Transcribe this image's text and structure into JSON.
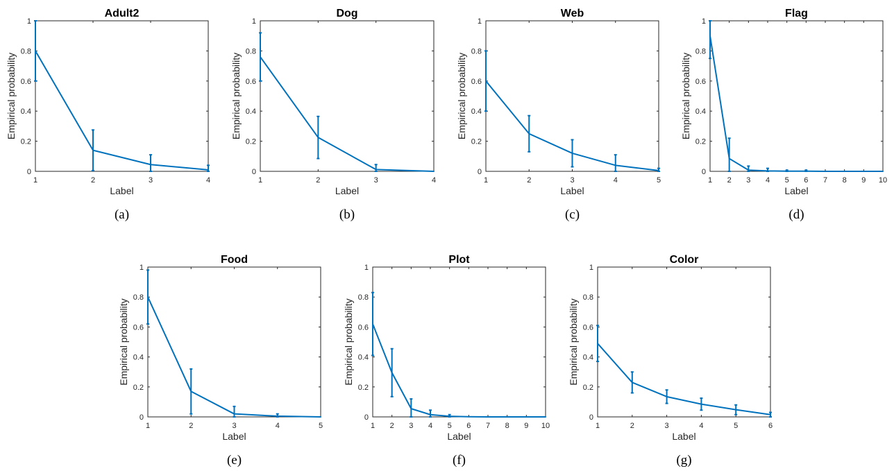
{
  "style": {
    "line_color": "#0072BD",
    "axis_color": "#262626"
  },
  "chart_data": [
    {
      "type": "line",
      "title": "Adult2",
      "caption": "(a)",
      "xlabel": "Label",
      "ylabel": "Empirical probability",
      "xlim": [
        1,
        4
      ],
      "ylim": [
        0,
        1
      ],
      "x": [
        1,
        2,
        3,
        4
      ],
      "xticks": [
        "1",
        "2",
        "3",
        "4"
      ],
      "yticks": [
        "0",
        "0.2",
        "0.4",
        "0.6",
        "0.8",
        "1"
      ],
      "y": [
        0.8,
        0.14,
        0.045,
        0.01
      ],
      "error_low": [
        0.6,
        0.005,
        0.0,
        0.0
      ],
      "error_high": [
        1.0,
        0.275,
        0.11,
        0.04
      ]
    },
    {
      "type": "line",
      "title": "Dog",
      "caption": "(b)",
      "xlabel": "Label",
      "ylabel": "Empirical probability",
      "xlim": [
        1,
        4
      ],
      "ylim": [
        0,
        1
      ],
      "x": [
        1,
        2,
        3,
        4
      ],
      "xticks": [
        "1",
        "2",
        "3",
        "4"
      ],
      "yticks": [
        "0",
        "0.2",
        "0.4",
        "0.6",
        "0.8",
        "1"
      ],
      "y": [
        0.76,
        0.225,
        0.012,
        0.0
      ],
      "error_low": [
        0.6,
        0.085,
        0.0,
        0.0
      ],
      "error_high": [
        0.92,
        0.365,
        0.045,
        0.0
      ]
    },
    {
      "type": "line",
      "title": "Web",
      "caption": "(c)",
      "xlabel": "Label",
      "ylabel": "Empirical probability",
      "xlim": [
        1,
        5
      ],
      "ylim": [
        0,
        1
      ],
      "x": [
        1,
        2,
        3,
        4,
        5
      ],
      "xticks": [
        "1",
        "2",
        "3",
        "4",
        "5"
      ],
      "yticks": [
        "0",
        "0.2",
        "0.4",
        "0.6",
        "0.8",
        "1"
      ],
      "y": [
        0.6,
        0.25,
        0.12,
        0.04,
        0.005
      ],
      "error_low": [
        0.4,
        0.13,
        0.03,
        0.0,
        0.0
      ],
      "error_high": [
        0.8,
        0.37,
        0.21,
        0.11,
        0.02
      ]
    },
    {
      "type": "line",
      "title": "Flag",
      "caption": "(d)",
      "xlabel": "Label",
      "ylabel": "Empirical probability",
      "xlim": [
        1,
        10
      ],
      "ylim": [
        0,
        1
      ],
      "x": [
        1,
        2,
        3,
        4,
        5,
        6,
        7,
        8,
        9,
        10
      ],
      "xticks": [
        "1",
        "2",
        "3",
        "4",
        "5",
        "6",
        "7",
        "8",
        "9",
        "10"
      ],
      "yticks": [
        "0",
        "0.2",
        "0.4",
        "0.6",
        "0.8",
        "1"
      ],
      "y": [
        0.9,
        0.085,
        0.008,
        0.003,
        0.001,
        0.001,
        0.0,
        0.0,
        0.0,
        0.0
      ],
      "error_low": [
        0.75,
        0.0,
        0.0,
        0.0,
        0.0,
        0.0,
        0.0,
        0.0,
        0.0,
        0.0
      ],
      "error_high": [
        1.0,
        0.22,
        0.035,
        0.02,
        0.008,
        0.008,
        0.0,
        0.0,
        0.0,
        0.0
      ]
    },
    {
      "type": "line",
      "title": "Food",
      "caption": "(e)",
      "xlabel": "Label",
      "ylabel": "Empirical probability",
      "xlim": [
        1,
        5
      ],
      "ylim": [
        0,
        1
      ],
      "x": [
        1,
        2,
        3,
        4,
        5
      ],
      "xticks": [
        "1",
        "2",
        "3",
        "4",
        "5"
      ],
      "yticks": [
        "0",
        "0.2",
        "0.4",
        "0.6",
        "0.8",
        "1"
      ],
      "y": [
        0.8,
        0.17,
        0.02,
        0.005,
        0.0
      ],
      "error_low": [
        0.62,
        0.02,
        0.0,
        0.0,
        0.0
      ],
      "error_high": [
        0.98,
        0.32,
        0.07,
        0.02,
        0.0
      ]
    },
    {
      "type": "line",
      "title": "Plot",
      "caption": "(f)",
      "xlabel": "Label",
      "ylabel": "Empirical probability",
      "xlim": [
        1,
        10
      ],
      "ylim": [
        0,
        1
      ],
      "x": [
        1,
        2,
        3,
        4,
        5,
        6,
        7,
        8,
        9,
        10
      ],
      "xticks": [
        "1",
        "2",
        "3",
        "4",
        "5",
        "6",
        "7",
        "8",
        "9",
        "10"
      ],
      "yticks": [
        "0",
        "0.2",
        "0.4",
        "0.6",
        "0.8",
        "1"
      ],
      "y": [
        0.62,
        0.295,
        0.055,
        0.015,
        0.004,
        0.001,
        0.0,
        0.0,
        0.0,
        0.0
      ],
      "error_low": [
        0.41,
        0.135,
        0.0,
        0.0,
        0.0,
        0.0,
        0.0,
        0.0,
        0.0,
        0.0
      ],
      "error_high": [
        0.83,
        0.455,
        0.12,
        0.045,
        0.015,
        0.0,
        0.0,
        0.0,
        0.0,
        0.0
      ]
    },
    {
      "type": "line",
      "title": "Color",
      "caption": "(g)",
      "xlabel": "Label",
      "ylabel": "Empirical probability",
      "xlim": [
        1,
        6
      ],
      "ylim": [
        0,
        1
      ],
      "x": [
        1,
        2,
        3,
        4,
        5,
        6
      ],
      "xticks": [
        "1",
        "2",
        "3",
        "4",
        "5",
        "6"
      ],
      "yticks": [
        "0",
        "0.2",
        "0.4",
        "0.6",
        "0.8",
        "1"
      ],
      "y": [
        0.49,
        0.23,
        0.135,
        0.085,
        0.048,
        0.015
      ],
      "error_low": [
        0.37,
        0.16,
        0.09,
        0.045,
        0.015,
        0.0
      ],
      "error_high": [
        0.61,
        0.3,
        0.18,
        0.125,
        0.08,
        0.03
      ]
    }
  ]
}
